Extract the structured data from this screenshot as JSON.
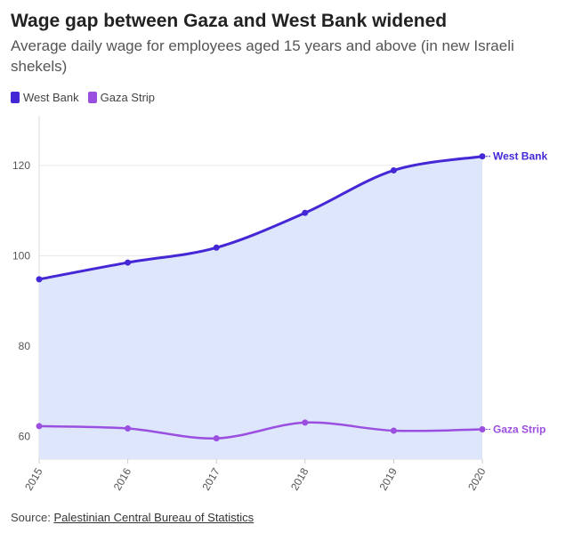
{
  "header": {
    "title": "Wage gap between Gaza and West Bank widened",
    "subtitle": "Average daily wage for employees aged 15 years and above (in new Israeli shekels)"
  },
  "legend": [
    {
      "label": "West Bank",
      "color": "#4527d6"
    },
    {
      "label": "Gaza Strip",
      "color": "#9b4fe0"
    }
  ],
  "footer": {
    "source_label": "Source:",
    "source_link": "Palestinian Central Bureau of Statistics"
  },
  "chart_data": {
    "type": "area",
    "title": "Wage gap between Gaza and West Bank widened",
    "subtitle": "Average daily wage for employees aged 15 years and above (in new Israeli shekels)",
    "x": [
      "2015",
      "2016",
      "2017",
      "2018",
      "2019",
      "2020"
    ],
    "ylim": [
      55,
      131
    ],
    "yticks": [
      60,
      80,
      100,
      120
    ],
    "grid": true,
    "legend_position": "top-left",
    "series": [
      {
        "name": "West Bank",
        "values": [
          94.8,
          98.5,
          101.8,
          109.5,
          118.9,
          122.0
        ],
        "color": "#4527d6",
        "fill": "#dde6fb"
      },
      {
        "name": "Gaza Strip",
        "values": [
          62.3,
          61.8,
          59.6,
          63.1,
          61.3,
          61.6
        ],
        "color": "#9b4fe0"
      }
    ]
  }
}
